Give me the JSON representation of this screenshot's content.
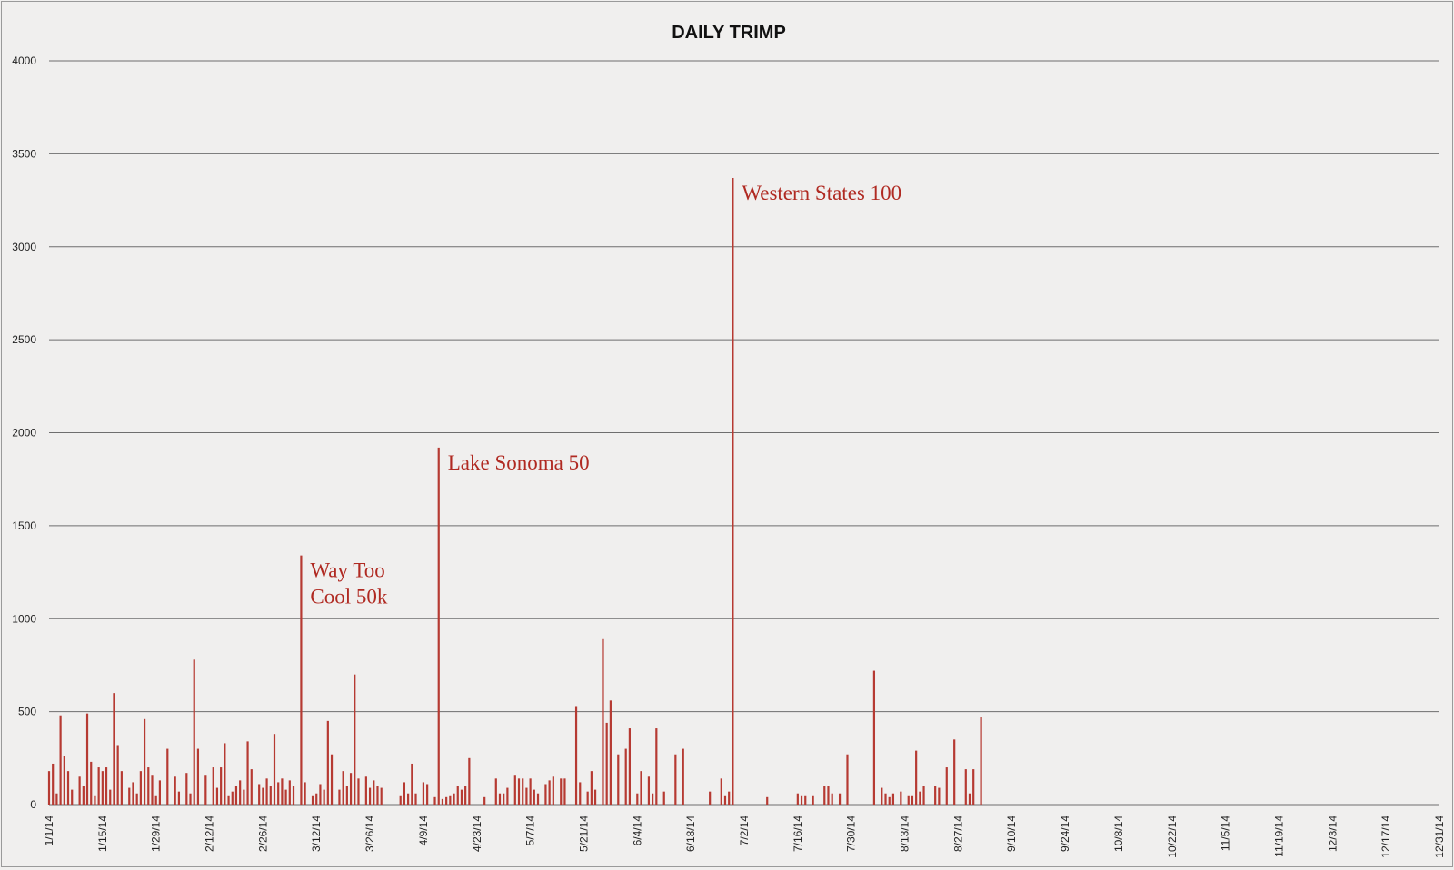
{
  "chart_data": {
    "type": "bar",
    "title": "DAILY TRIMP",
    "xlabel": "",
    "ylabel": "",
    "ylim": [
      0,
      4000
    ],
    "yticks": [
      0,
      500,
      1000,
      1500,
      2000,
      2500,
      3000,
      3500,
      4000
    ],
    "grid": true,
    "start_date": "1/1/14",
    "num_days": 365,
    "xticks": [
      "1/1/14",
      "1/15/14",
      "1/29/14",
      "2/12/14",
      "2/26/14",
      "3/12/14",
      "3/26/14",
      "4/9/14",
      "4/23/14",
      "5/7/14",
      "5/21/14",
      "6/4/14",
      "6/18/14",
      "7/2/14",
      "7/16/14",
      "7/30/14",
      "8/13/14",
      "8/27/14",
      "9/10/14",
      "9/24/14",
      "10/8/14",
      "10/22/14",
      "11/5/14",
      "11/19/14",
      "12/3/14",
      "12/17/14",
      "12/31/14"
    ],
    "xtick_day_index": [
      0,
      14,
      28,
      42,
      56,
      70,
      84,
      98,
      112,
      126,
      140,
      154,
      168,
      182,
      196,
      210,
      224,
      238,
      252,
      266,
      280,
      294,
      308,
      322,
      336,
      350,
      364
    ],
    "bar_color": "#b63a32",
    "series": [
      {
        "name": "Daily TRIMP",
        "points": [
          [
            0,
            180
          ],
          [
            1,
            220
          ],
          [
            2,
            60
          ],
          [
            3,
            480
          ],
          [
            4,
            260
          ],
          [
            5,
            180
          ],
          [
            6,
            80
          ],
          [
            8,
            150
          ],
          [
            9,
            100
          ],
          [
            10,
            490
          ],
          [
            11,
            230
          ],
          [
            12,
            50
          ],
          [
            13,
            200
          ],
          [
            14,
            180
          ],
          [
            15,
            200
          ],
          [
            16,
            80
          ],
          [
            17,
            600
          ],
          [
            18,
            320
          ],
          [
            19,
            180
          ],
          [
            21,
            90
          ],
          [
            22,
            120
          ],
          [
            23,
            60
          ],
          [
            24,
            180
          ],
          [
            25,
            460
          ],
          [
            26,
            200
          ],
          [
            27,
            160
          ],
          [
            28,
            50
          ],
          [
            29,
            130
          ],
          [
            31,
            300
          ],
          [
            33,
            150
          ],
          [
            34,
            70
          ],
          [
            36,
            170
          ],
          [
            37,
            60
          ],
          [
            38,
            780
          ],
          [
            39,
            300
          ],
          [
            41,
            160
          ],
          [
            43,
            200
          ],
          [
            44,
            90
          ],
          [
            45,
            200
          ],
          [
            46,
            330
          ],
          [
            47,
            50
          ],
          [
            48,
            70
          ],
          [
            49,
            100
          ],
          [
            50,
            130
          ],
          [
            51,
            80
          ],
          [
            52,
            340
          ],
          [
            53,
            190
          ],
          [
            55,
            110
          ],
          [
            56,
            90
          ],
          [
            57,
            140
          ],
          [
            58,
            100
          ],
          [
            59,
            380
          ],
          [
            60,
            120
          ],
          [
            61,
            140
          ],
          [
            62,
            80
          ],
          [
            63,
            130
          ],
          [
            64,
            100
          ],
          [
            66,
            1340
          ],
          [
            67,
            120
          ],
          [
            69,
            50
          ],
          [
            70,
            60
          ],
          [
            71,
            110
          ],
          [
            72,
            80
          ],
          [
            73,
            450
          ],
          [
            74,
            270
          ],
          [
            76,
            80
          ],
          [
            77,
            180
          ],
          [
            78,
            100
          ],
          [
            79,
            170
          ],
          [
            80,
            700
          ],
          [
            81,
            140
          ],
          [
            83,
            150
          ],
          [
            84,
            90
          ],
          [
            85,
            130
          ],
          [
            86,
            100
          ],
          [
            87,
            90
          ],
          [
            92,
            50
          ],
          [
            93,
            120
          ],
          [
            94,
            60
          ],
          [
            95,
            220
          ],
          [
            96,
            60
          ],
          [
            98,
            120
          ],
          [
            99,
            110
          ],
          [
            101,
            40
          ],
          [
            102,
            1920
          ],
          [
            103,
            30
          ],
          [
            104,
            40
          ],
          [
            105,
            50
          ],
          [
            106,
            60
          ],
          [
            107,
            100
          ],
          [
            108,
            80
          ],
          [
            109,
            100
          ],
          [
            110,
            250
          ],
          [
            114,
            40
          ],
          [
            117,
            140
          ],
          [
            118,
            60
          ],
          [
            119,
            60
          ],
          [
            120,
            90
          ],
          [
            122,
            160
          ],
          [
            123,
            140
          ],
          [
            124,
            140
          ],
          [
            125,
            90
          ],
          [
            126,
            140
          ],
          [
            127,
            80
          ],
          [
            128,
            60
          ],
          [
            130,
            110
          ],
          [
            131,
            130
          ],
          [
            132,
            150
          ],
          [
            134,
            140
          ],
          [
            135,
            140
          ],
          [
            138,
            530
          ],
          [
            139,
            120
          ],
          [
            141,
            70
          ],
          [
            142,
            180
          ],
          [
            143,
            80
          ],
          [
            145,
            890
          ],
          [
            146,
            440
          ],
          [
            147,
            560
          ],
          [
            149,
            270
          ],
          [
            151,
            300
          ],
          [
            152,
            410
          ],
          [
            154,
            60
          ],
          [
            155,
            180
          ],
          [
            157,
            150
          ],
          [
            158,
            60
          ],
          [
            159,
            410
          ],
          [
            161,
            70
          ],
          [
            164,
            270
          ],
          [
            166,
            300
          ],
          [
            173,
            70
          ],
          [
            176,
            140
          ],
          [
            177,
            50
          ],
          [
            178,
            70
          ],
          [
            179,
            3370
          ],
          [
            188,
            40
          ],
          [
            196,
            60
          ],
          [
            197,
            50
          ],
          [
            198,
            50
          ],
          [
            200,
            50
          ],
          [
            203,
            100
          ],
          [
            204,
            100
          ],
          [
            205,
            60
          ],
          [
            207,
            60
          ],
          [
            209,
            270
          ],
          [
            216,
            720
          ],
          [
            218,
            90
          ],
          [
            219,
            60
          ],
          [
            220,
            40
          ],
          [
            221,
            60
          ],
          [
            223,
            70
          ],
          [
            225,
            50
          ],
          [
            226,
            50
          ],
          [
            227,
            290
          ],
          [
            228,
            70
          ],
          [
            229,
            100
          ],
          [
            232,
            100
          ],
          [
            233,
            90
          ],
          [
            235,
            200
          ],
          [
            237,
            350
          ],
          [
            240,
            190
          ],
          [
            241,
            60
          ],
          [
            242,
            190
          ],
          [
            244,
            470
          ]
        ]
      }
    ],
    "annotations": [
      {
        "lines": [
          "Way Too",
          "Cool 50k"
        ],
        "day": 66,
        "value": 1340
      },
      {
        "lines": [
          "Lake Sonoma 50"
        ],
        "day": 102,
        "value": 1920
      },
      {
        "lines": [
          "Western States 100"
        ],
        "day": 179,
        "value": 3370
      }
    ]
  }
}
